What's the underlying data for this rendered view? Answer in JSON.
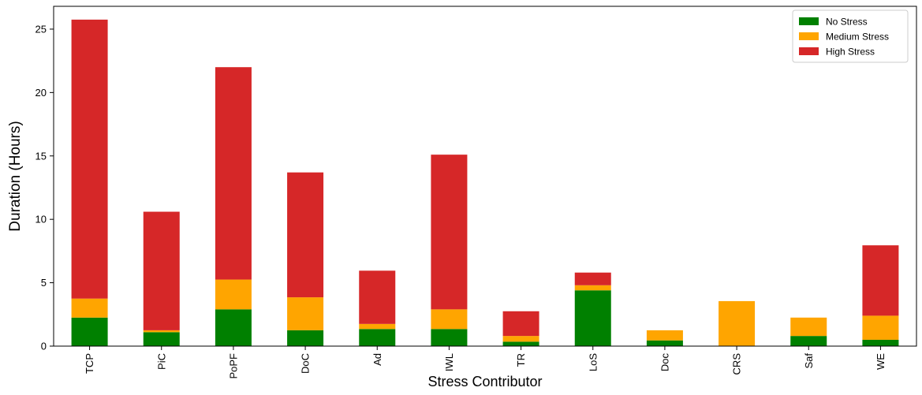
{
  "chart_data": {
    "type": "bar",
    "stacked": true,
    "title": "",
    "xlabel": "Stress Contributor",
    "ylabel": "Duration (Hours)",
    "ylim": [
      0,
      26.8
    ],
    "yticks": [
      0,
      5,
      10,
      15,
      20,
      25
    ],
    "categories": [
      "TCP",
      "PiC",
      "PoPF",
      "DoC",
      "Ad",
      "IWL",
      "TR",
      "LoS",
      "Doc",
      "CRS",
      "Saf",
      "WE"
    ],
    "series": [
      {
        "name": "No Stress",
        "color": "#008000",
        "values": [
          2.25,
          1.1,
          2.9,
          1.25,
          1.35,
          1.35,
          0.35,
          4.4,
          0.45,
          0.0,
          0.8,
          0.5
        ]
      },
      {
        "name": "Medium Stress",
        "color": "#FFA500",
        "values": [
          1.5,
          0.15,
          2.35,
          2.6,
          0.4,
          1.55,
          0.45,
          0.4,
          0.8,
          3.55,
          1.45,
          1.9
        ]
      },
      {
        "name": "High Stress",
        "color": "#D62728",
        "values": [
          22.0,
          9.35,
          16.75,
          9.85,
          4.2,
          12.2,
          1.95,
          1.0,
          0.0,
          0.0,
          0.0,
          5.55
        ]
      }
    ],
    "grid": false,
    "legend_position": "top-right"
  }
}
